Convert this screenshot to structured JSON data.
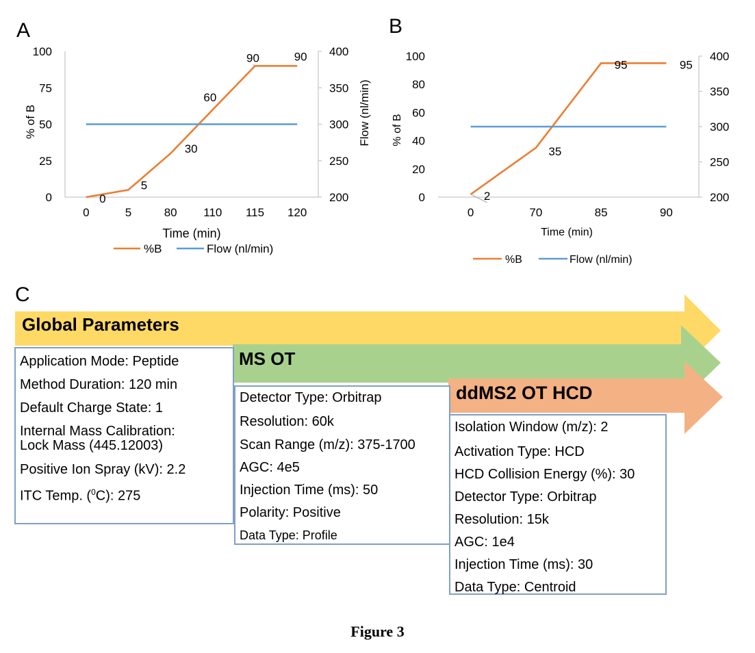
{
  "panels": {
    "a": "A",
    "b": "B",
    "c": "C"
  },
  "chart_data": [
    {
      "type": "line",
      "panel": "A",
      "categories": [
        "0",
        "5",
        "80",
        "110",
        "115",
        "120"
      ],
      "series": [
        {
          "name": "%B",
          "color": "#ED7D31",
          "axis": "left",
          "values": [
            0,
            5,
            30,
            60,
            90,
            90
          ],
          "labels": [
            "0",
            "5",
            "30",
            "60",
            "90",
            "90"
          ]
        },
        {
          "name": "Flow (nl/min)",
          "color": "#5B9BD5",
          "axis": "right",
          "values": [
            300,
            300,
            300,
            300,
            300,
            300
          ]
        }
      ],
      "xlabel": "Time (min)",
      "ylabel": "% of B",
      "y2label": "Flow (nl/min)",
      "ylim": [
        0,
        100
      ],
      "yticks": [
        "0",
        "25",
        "50",
        "75",
        "100"
      ],
      "y2lim": [
        200,
        400
      ],
      "y2ticks": [
        "200",
        "250",
        "300",
        "350",
        "400"
      ],
      "legend": [
        "%B",
        "Flow (nl/min)"
      ],
      "legend_position": "bottom"
    },
    {
      "type": "line",
      "panel": "B",
      "categories": [
        "0",
        "70",
        "85",
        "90"
      ],
      "series": [
        {
          "name": "%B",
          "color": "#ED7D31",
          "axis": "left",
          "values": [
            2,
            35,
            95,
            95
          ],
          "labels": [
            "2",
            "35",
            "95",
            "95"
          ]
        },
        {
          "name": "Flow (nl/min)",
          "color": "#5B9BD5",
          "axis": "right",
          "values": [
            300,
            300,
            300,
            300
          ]
        }
      ],
      "xlabel": "Time (min)",
      "ylabel": "% of B",
      "ylim": [
        0,
        100
      ],
      "yticks": [
        "0",
        "20",
        "40",
        "60",
        "80",
        "100"
      ],
      "y2lim": [
        200,
        400
      ],
      "y2ticks": [
        "200",
        "250",
        "300",
        "350",
        "400"
      ],
      "legend": [
        "%B",
        "Flow (nl/min)"
      ],
      "legend_position": "bottom"
    }
  ],
  "method": {
    "global": {
      "title": "Global Parameters",
      "color": "#FFD966",
      "items": [
        "Application Mode: Peptide",
        "Method Duration: 120 min",
        "Default Charge State: 1",
        "Internal Mass Calibration:",
        "Lock Mass (445.12003)",
        "Positive Ion Spray (kV): 2.2",
        "ITC Temp. (",
        "0",
        "C): 275"
      ]
    },
    "ms_ot": {
      "title": "MS OT",
      "color": "#A9D18E",
      "items": [
        "Detector Type: Orbitrap",
        "Resolution: 60k",
        "Scan Range (m/z): 375-1700",
        "AGC: 4e5",
        "Injection Time (ms): 50",
        "Polarity: Positive",
        "Data Type: Profile"
      ]
    },
    "ddms2": {
      "title": "ddMS2 OT HCD",
      "color": "#F4B183",
      "items": [
        "Isolation Window (m/z): 2",
        "Activation Type: HCD",
        "HCD Collision Energy (%): 30",
        "Detector Type: Orbitrap",
        "Resolution: 15k",
        "AGC: 1e4",
        "Injection Time (ms): 30",
        "Data Type: Centroid"
      ]
    }
  },
  "caption": "Figure 3"
}
